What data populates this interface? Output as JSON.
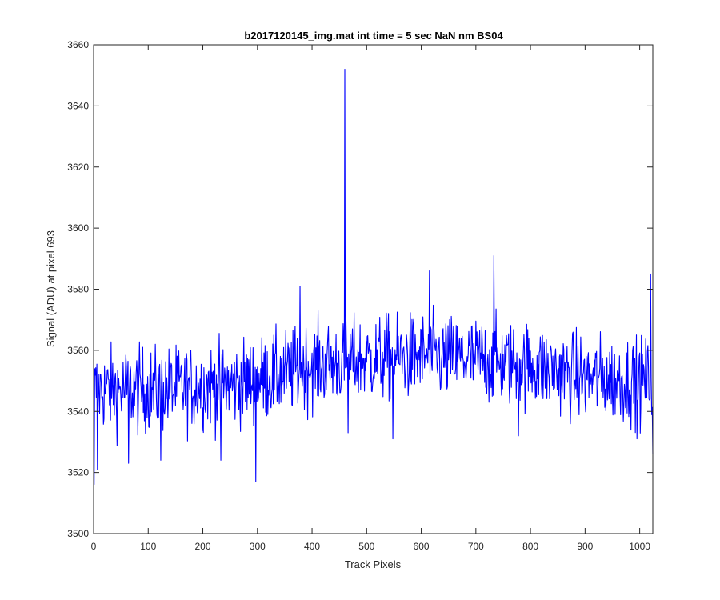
{
  "chart_data": {
    "type": "line",
    "title": "b2017120145_img.mat int time = 5 sec  NaN nm BS04",
    "xlabel": "Track Pixels",
    "ylabel": "Signal (ADU) at pixel 693",
    "xlim": [
      0,
      1024
    ],
    "ylim": [
      3500,
      3660
    ],
    "xticks": [
      0,
      100,
      200,
      300,
      400,
      500,
      600,
      700,
      800,
      900,
      1000
    ],
    "yticks": [
      3500,
      3520,
      3540,
      3560,
      3580,
      3600,
      3620,
      3640,
      3660
    ],
    "grid": false,
    "line_color": "#0000ff",
    "series": [
      {
        "x_start": 1,
        "x_step": 1,
        "trend": [
          [
            0,
            3547
          ],
          [
            120,
            3547
          ],
          [
            260,
            3549
          ],
          [
            320,
            3551
          ],
          [
            400,
            3555
          ],
          [
            500,
            3557
          ],
          [
            600,
            3558
          ],
          [
            700,
            3557
          ],
          [
            800,
            3555
          ],
          [
            900,
            3551
          ],
          [
            1024,
            3550
          ]
        ],
        "noise_amplitude": 7,
        "features": [
          {
            "x": 1,
            "y": 3516
          },
          {
            "x": 7,
            "y": 3521
          },
          {
            "x": 64,
            "y": 3523
          },
          {
            "x": 123,
            "y": 3524
          },
          {
            "x": 233,
            "y": 3524
          },
          {
            "x": 297,
            "y": 3517
          },
          {
            "x": 378,
            "y": 3581
          },
          {
            "x": 460,
            "y": 3652
          },
          {
            "x": 466,
            "y": 3533
          },
          {
            "x": 548,
            "y": 3531
          },
          {
            "x": 615,
            "y": 3586
          },
          {
            "x": 733,
            "y": 3591
          },
          {
            "x": 778,
            "y": 3532
          },
          {
            "x": 995,
            "y": 3531
          },
          {
            "x": 1020,
            "y": 3585
          },
          {
            "x": 1024,
            "y": 3526
          }
        ]
      }
    ]
  }
}
